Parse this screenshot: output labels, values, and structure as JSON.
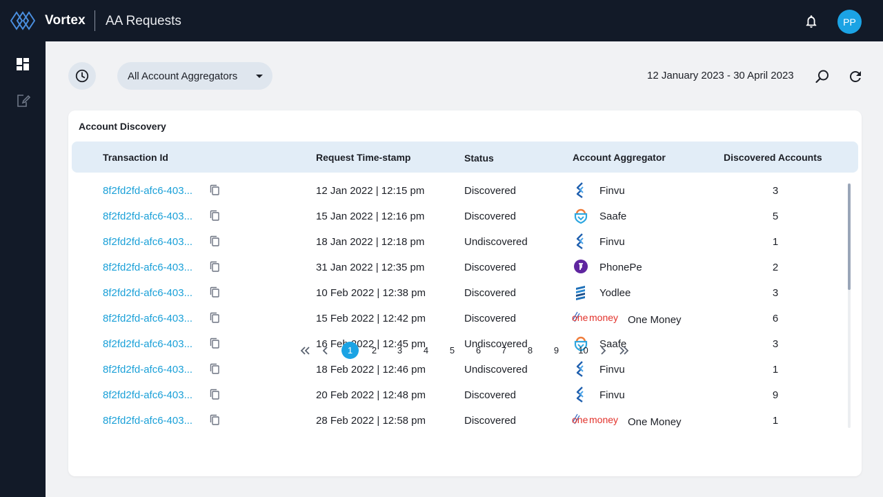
{
  "app": {
    "brand": "Vortex",
    "page_title": "AA Requests",
    "avatar_initials": "PP",
    "accent_color": "#1ba3e4",
    "nav_bg_color": "#121a28"
  },
  "sidebar": {
    "items": [
      {
        "name": "dashboard",
        "icon": "dashboard-icon",
        "active": true
      },
      {
        "name": "requests",
        "icon": "edit-document-icon",
        "active": false
      }
    ]
  },
  "toolbar": {
    "aggregator_filter": "All Account Aggregators",
    "date_range": "12 January 2023 - 30 April 2023"
  },
  "table": {
    "title": "Account Discovery",
    "columns": [
      "Transaction Id",
      "Request Time-stamp",
      "Status",
      "Account Aggregator",
      "Discovered Accounts"
    ],
    "rows": [
      {
        "txn": "8f2fd2fd-afc6-403...",
        "timestamp": "12 Jan 2022 | 12:15 pm",
        "status": "Discovered",
        "aggregator": "Finvu",
        "logo": "finvu-logo",
        "count": "3"
      },
      {
        "txn": "8f2fd2fd-afc6-403...",
        "timestamp": "15 Jan 2022 | 12:16 pm",
        "status": "Discovered",
        "aggregator": "Saafe",
        "logo": "saafe-logo",
        "count": "5"
      },
      {
        "txn": "8f2fd2fd-afc6-403...",
        "timestamp": "18 Jan 2022 | 12:18 pm",
        "status": "Undiscovered",
        "aggregator": "Finvu",
        "logo": "finvu-logo",
        "count": "1"
      },
      {
        "txn": "8f2fd2fd-afc6-403...",
        "timestamp": "31 Jan 2022 | 12:35 pm",
        "status": "Discovered",
        "aggregator": "PhonePe",
        "logo": "phonepe-logo",
        "count": "2"
      },
      {
        "txn": "8f2fd2fd-afc6-403...",
        "timestamp": "10 Feb 2022 | 12:38 pm",
        "status": "Discovered",
        "aggregator": "Yodlee",
        "logo": "yodlee-logo",
        "count": "3"
      },
      {
        "txn": "8f2fd2fd-afc6-403...",
        "timestamp": "15 Feb 2022 | 12:42 pm",
        "status": "Discovered",
        "aggregator": "One Money",
        "logo": "onemoney-logo",
        "count": "6"
      },
      {
        "txn": "8f2fd2fd-afc6-403...",
        "timestamp": "16 Feb 2022 | 12:45 pm",
        "status": "Undiscovered",
        "aggregator": "Saafe",
        "logo": "saafe-logo",
        "count": "3"
      },
      {
        "txn": "8f2fd2fd-afc6-403...",
        "timestamp": "18 Feb 2022 | 12:46 pm",
        "status": "Undiscovered",
        "aggregator": "Finvu",
        "logo": "finvu-logo",
        "count": "1"
      },
      {
        "txn": "8f2fd2fd-afc6-403...",
        "timestamp": "20 Feb 2022 | 12:48 pm",
        "status": "Discovered",
        "aggregator": "Finvu",
        "logo": "finvu-logo",
        "count": "9"
      },
      {
        "txn": "8f2fd2fd-afc6-403...",
        "timestamp": "28 Feb 2022 | 12:58 pm",
        "status": "Discovered",
        "aggregator": "One Money",
        "logo": "onemoney-logo",
        "count": "1"
      }
    ]
  },
  "logos": {
    "onemoney_text_one": "one",
    "onemoney_text_money": "money"
  },
  "pagination": {
    "pages": [
      "1",
      "2",
      "3",
      "4",
      "5",
      "6",
      "7",
      "8",
      "9",
      "10"
    ],
    "current": "1"
  }
}
